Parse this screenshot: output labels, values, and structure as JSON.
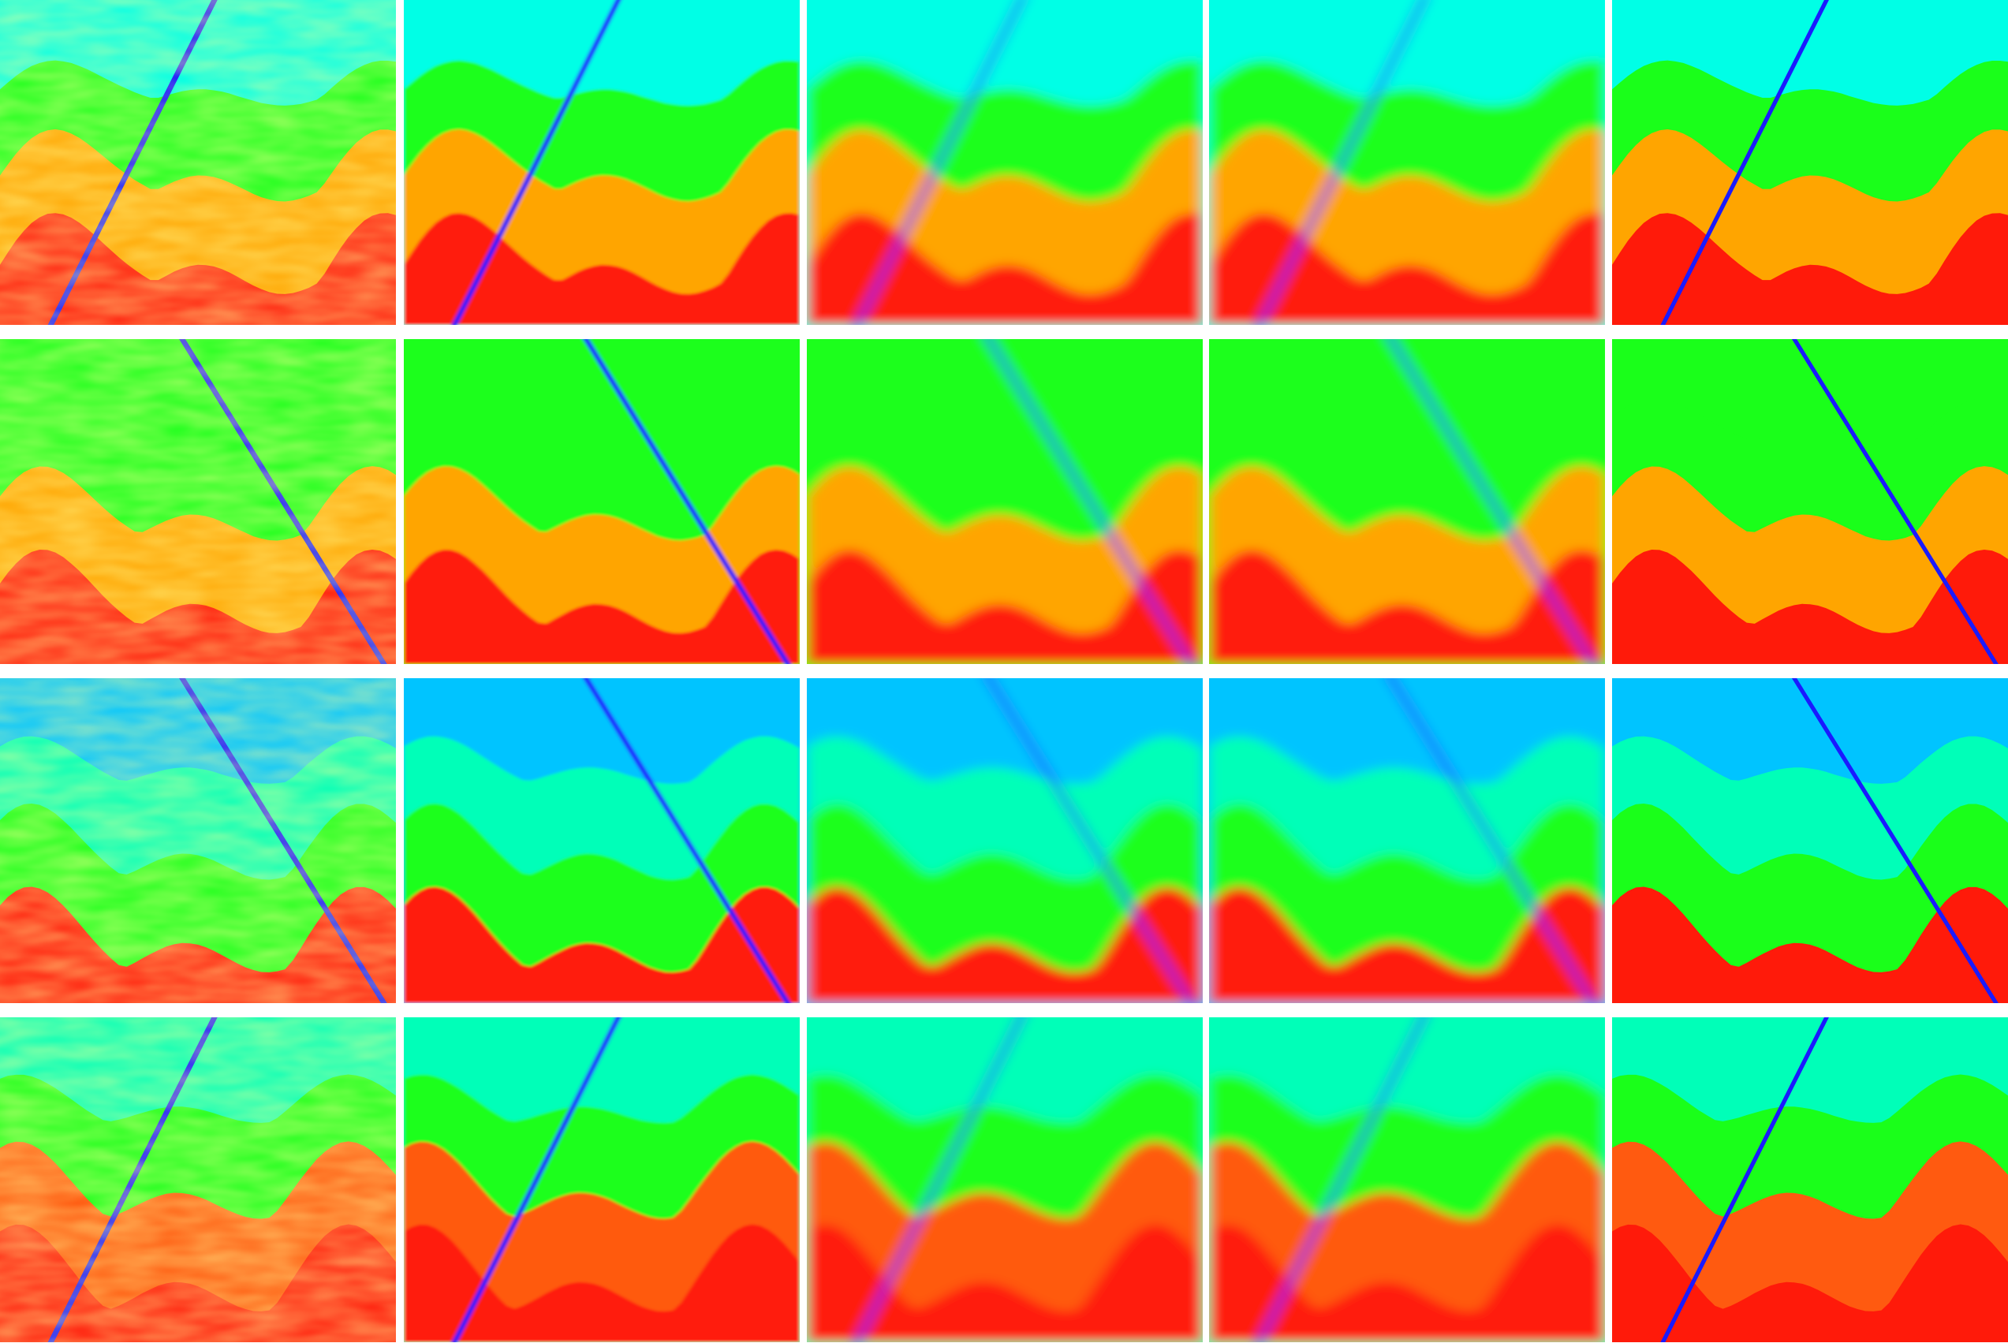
{
  "figure": {
    "rows": 4,
    "columns": 5,
    "colors": {
      "blue_band": "#00c4ff",
      "cyan": "#00ffe6",
      "aqua": "#00ffb8",
      "green": "#1aff1a",
      "yellow": "#f5ff1a",
      "orange": "#ffa500",
      "red_orange": "#ff5a10",
      "red": "#ff1a0a",
      "fault": "#1a1aff"
    },
    "models": [
      {
        "layers": [
          "cyan",
          "green",
          "orange",
          "red"
        ],
        "fault": "rising",
        "stage_labels": [
          "noisy",
          "blocky",
          "smooth",
          "smooth",
          "ground-truth"
        ]
      },
      {
        "layers": [
          "green",
          "green",
          "orange",
          "red"
        ],
        "fault": "falling",
        "stage_labels": [
          "noisy",
          "blocky",
          "smooth",
          "smooth",
          "ground-truth"
        ]
      },
      {
        "layers": [
          "blue_band",
          "aqua",
          "green",
          "red"
        ],
        "fault": "falling",
        "stage_labels": [
          "noisy",
          "blocky",
          "smooth",
          "smooth",
          "ground-truth"
        ]
      },
      {
        "layers": [
          "aqua",
          "green",
          "red_orange",
          "red"
        ],
        "fault": "rising",
        "stage_labels": [
          "noisy",
          "blocky",
          "smooth",
          "smooth",
          "ground-truth"
        ]
      }
    ]
  }
}
